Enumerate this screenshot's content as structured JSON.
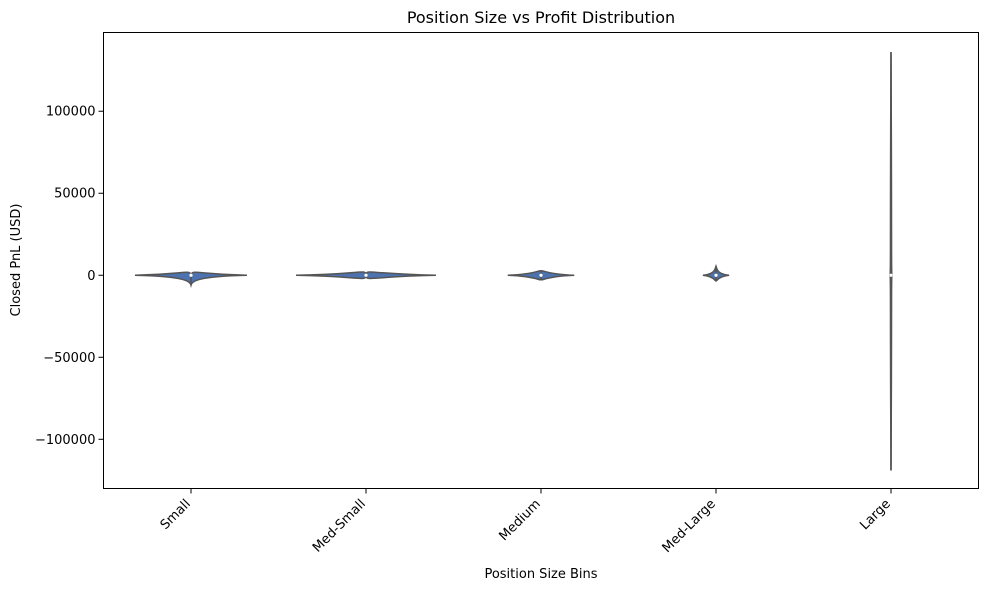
{
  "chart_data": {
    "type": "violin",
    "title": "Position Size vs Profit Distribution",
    "xlabel": "Position Size Bins",
    "ylabel": "Closed PnL (USD)",
    "ylim": [
      -130000,
      148000
    ],
    "categories": [
      "Small",
      "Med-Small",
      "Medium",
      "Med-Large",
      "Large"
    ],
    "yticks": [
      -100000,
      -50000,
      0,
      50000,
      100000
    ],
    "ytick_labels": [
      "−100000",
      "−50000",
      "0",
      "50000",
      "100000"
    ],
    "series": [
      {
        "category": "Small",
        "min": -6000,
        "max": 200,
        "q1": -80,
        "q3": 150,
        "median": 0,
        "violin_half_width_ratio": 0.64
      },
      {
        "category": "Med-Small",
        "min": -600,
        "max": 700,
        "q1": -150,
        "q3": 200,
        "median": 0,
        "violin_half_width_ratio": 0.8
      },
      {
        "category": "Medium",
        "min": -2500,
        "max": 2500,
        "q1": -400,
        "q3": 500,
        "median": 0,
        "violin_half_width_ratio": 0.38
      },
      {
        "category": "Med-Large",
        "min": -3500,
        "max": 5500,
        "q1": -1000,
        "q3": 1200,
        "median": 0,
        "violin_half_width_ratio": 0.15
      },
      {
        "category": "Large",
        "min": -119000,
        "max": 136000,
        "q1": -1500,
        "q3": 2000,
        "median": 0,
        "violin_half_width_ratio": 0.012
      }
    ],
    "colors": {
      "violin": "#4c72b0",
      "box": "#555555",
      "median": "#ffffff"
    },
    "grid": false,
    "legend": "none"
  }
}
